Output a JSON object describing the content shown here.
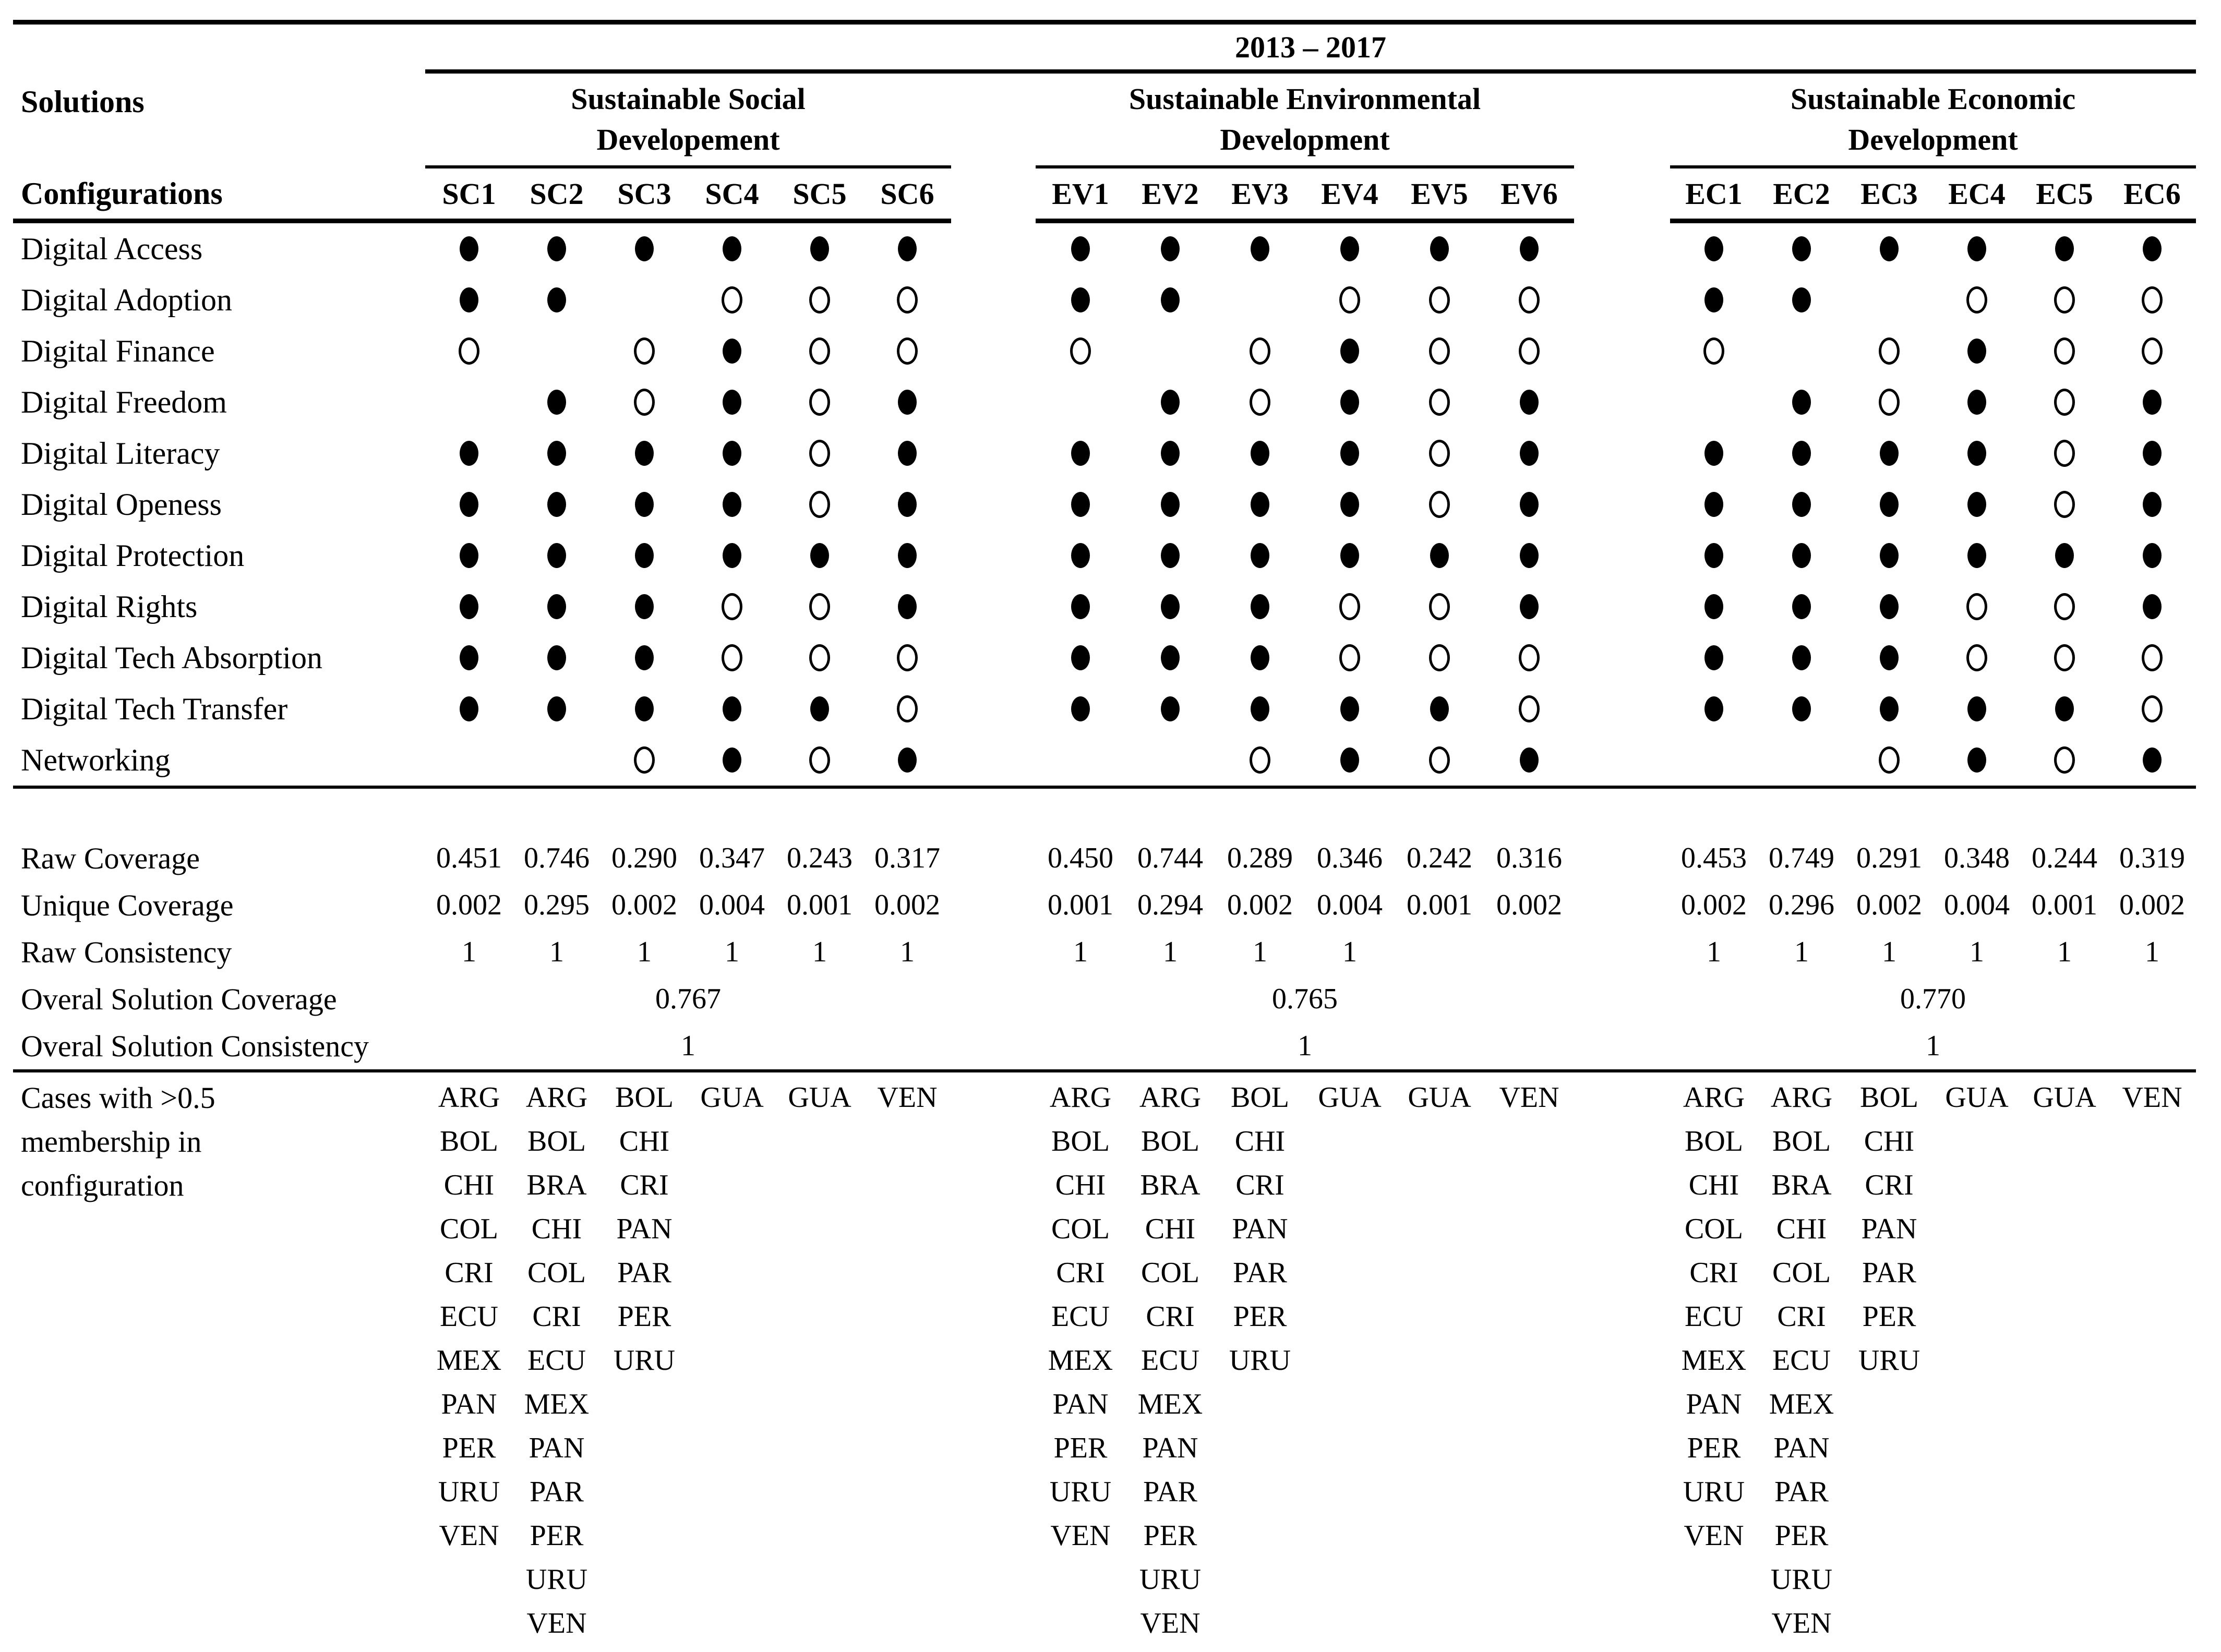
{
  "header": {
    "period": "2013 – 2017",
    "solutions_label": "Solutions",
    "configurations_label": "Configurations"
  },
  "groups": [
    {
      "title_line1": "Sustainable Social",
      "title_line2": "Developement",
      "columns": [
        "SC1",
        "SC2",
        "SC3",
        "SC4",
        "SC5",
        "SC6"
      ]
    },
    {
      "title_line1": "Sustainable Environmental",
      "title_line2": "Development",
      "columns": [
        "EV1",
        "EV2",
        "EV3",
        "EV4",
        "EV5",
        "EV6"
      ]
    },
    {
      "title_line1": "Sustainable Economic",
      "title_line2": "Development",
      "columns": [
        "EC1",
        "EC2",
        "EC3",
        "EC4",
        "EC5",
        "EC6"
      ]
    }
  ],
  "symbols": {
    "present": "●",
    "absent": "○",
    "blank": ""
  },
  "conditions": [
    {
      "label": "Digital Access",
      "sc": [
        "●",
        "●",
        "●",
        "●",
        "●",
        "●"
      ],
      "ev": [
        "●",
        "●",
        "●",
        "●",
        "●",
        "●"
      ],
      "ec": [
        "●",
        "●",
        "●",
        "●",
        "●",
        "●"
      ]
    },
    {
      "label": "Digital Adoption",
      "sc": [
        "●",
        "●",
        "",
        "○",
        "○",
        "○"
      ],
      "ev": [
        "●",
        "●",
        "",
        "○",
        "○",
        "○"
      ],
      "ec": [
        "●",
        "●",
        "",
        "○",
        "○",
        "○"
      ]
    },
    {
      "label": "Digital Finance",
      "sc": [
        "○",
        "",
        "○",
        "●",
        "○",
        "○"
      ],
      "ev": [
        "○",
        "",
        "○",
        "●",
        "○",
        "○"
      ],
      "ec": [
        "○",
        "",
        "○",
        "●",
        "○",
        "○"
      ]
    },
    {
      "label": "Digital Freedom",
      "sc": [
        "",
        "●",
        "○",
        "●",
        "○",
        "●"
      ],
      "ev": [
        "",
        "●",
        "○",
        "●",
        "○",
        "●"
      ],
      "ec": [
        "",
        "●",
        "○",
        "●",
        "○",
        "●"
      ]
    },
    {
      "label": "Digital Literacy",
      "sc": [
        "●",
        "●",
        "●",
        "●",
        "○",
        "●"
      ],
      "ev": [
        "●",
        "●",
        "●",
        "●",
        "○",
        "●"
      ],
      "ec": [
        "●",
        "●",
        "●",
        "●",
        "○",
        "●"
      ]
    },
    {
      "label": "Digital Openess",
      "sc": [
        "●",
        "●",
        "●",
        "●",
        "○",
        "●"
      ],
      "ev": [
        "●",
        "●",
        "●",
        "●",
        "○",
        "●"
      ],
      "ec": [
        "●",
        "●",
        "●",
        "●",
        "○",
        "●"
      ]
    },
    {
      "label": "Digital Protection",
      "sc": [
        "●",
        "●",
        "●",
        "●",
        "●",
        "●"
      ],
      "ev": [
        "●",
        "●",
        "●",
        "●",
        "●",
        "●"
      ],
      "ec": [
        "●",
        "●",
        "●",
        "●",
        "●",
        "●"
      ]
    },
    {
      "label": "Digital Rights",
      "sc": [
        "●",
        "●",
        "●",
        "○",
        "○",
        "●"
      ],
      "ev": [
        "●",
        "●",
        "●",
        "○",
        "○",
        "●"
      ],
      "ec": [
        "●",
        "●",
        "●",
        "○",
        "○",
        "●"
      ]
    },
    {
      "label": "Digital Tech Absorption",
      "sc": [
        "●",
        "●",
        "●",
        "○",
        "○",
        "○"
      ],
      "ev": [
        "●",
        "●",
        "●",
        "○",
        "○",
        "○"
      ],
      "ec": [
        "●",
        "●",
        "●",
        "○",
        "○",
        "○"
      ]
    },
    {
      "label": "Digital Tech Transfer",
      "sc": [
        "●",
        "●",
        "●",
        "●",
        "●",
        "○"
      ],
      "ev": [
        "●",
        "●",
        "●",
        "●",
        "●",
        "○"
      ],
      "ec": [
        "●",
        "●",
        "●",
        "●",
        "●",
        "○"
      ]
    },
    {
      "label": "Networking",
      "sc": [
        "",
        "",
        "○",
        "●",
        "○",
        "●"
      ],
      "ev": [
        "",
        "",
        "○",
        "●",
        "○",
        "●"
      ],
      "ec": [
        "",
        "",
        "○",
        "●",
        "○",
        "●"
      ]
    }
  ],
  "stats": {
    "raw_coverage": {
      "label": "Raw Coverage",
      "sc": [
        "0.451",
        "0.746",
        "0.290",
        "0.347",
        "0.243",
        "0.317"
      ],
      "ev": [
        "0.450",
        "0.744",
        "0.289",
        "0.346",
        "0.242",
        "0.316"
      ],
      "ec": [
        "0.453",
        "0.749",
        "0.291",
        "0.348",
        "0.244",
        "0.319"
      ]
    },
    "unique_coverage": {
      "label": "Unique Coverage",
      "sc": [
        "0.002",
        "0.295",
        "0.002",
        "0.004",
        "0.001",
        "0.002"
      ],
      "ev": [
        "0.001",
        "0.294",
        "0.002",
        "0.004",
        "0.001",
        "0.002"
      ],
      "ec": [
        "0.002",
        "0.296",
        "0.002",
        "0.004",
        "0.001",
        "0.002"
      ]
    },
    "raw_consistency": {
      "label": "Raw Consistency",
      "sc": [
        "1",
        "1",
        "1",
        "1",
        "1",
        "1"
      ],
      "ev": [
        "1",
        "1",
        "1",
        "1",
        "",
        ""
      ],
      "ec": [
        "1",
        "1",
        "1",
        "1",
        "1",
        "1"
      ]
    },
    "overall_coverage": {
      "label": "Overal Solution Coverage",
      "sc": "0.767",
      "ev": "0.765",
      "ec": "0.770"
    },
    "overall_consistency": {
      "label": "Overal Solution Consistency",
      "sc": "1",
      "ev": "1",
      "ec": "1"
    }
  },
  "cases": {
    "label_lines": [
      "Cases with >0.5",
      "membership in",
      "configuration"
    ],
    "sc": [
      [
        "ARG",
        "BOL",
        "CHI",
        "COL",
        "CRI",
        "ECU",
        "MEX",
        "PAN",
        "PER",
        "URU",
        "VEN"
      ],
      [
        "ARG",
        "BOL",
        "BRA",
        "CHI",
        "COL",
        "CRI",
        "ECU",
        "MEX",
        "PAN",
        "PAR",
        "PER",
        "URU",
        "VEN"
      ],
      [
        "BOL",
        "CHI",
        "CRI",
        "PAN",
        "PAR",
        "PER",
        "URU"
      ],
      [
        "GUA"
      ],
      [
        "GUA"
      ],
      [
        "VEN"
      ]
    ],
    "ev": [
      [
        "ARG",
        "BOL",
        "CHI",
        "COL",
        "CRI",
        "ECU",
        "MEX",
        "PAN",
        "PER",
        "URU",
        "VEN"
      ],
      [
        "ARG",
        "BOL",
        "BRA",
        "CHI",
        "COL",
        "CRI",
        "ECU",
        "MEX",
        "PAN",
        "PAR",
        "PER",
        "URU",
        "VEN"
      ],
      [
        "BOL",
        "CHI",
        "CRI",
        "PAN",
        "PAR",
        "PER",
        "URU"
      ],
      [
        "GUA"
      ],
      [
        "GUA"
      ],
      [
        "VEN"
      ]
    ],
    "ec": [
      [
        "ARG",
        "BOL",
        "CHI",
        "COL",
        "CRI",
        "ECU",
        "MEX",
        "PAN",
        "PER",
        "URU",
        "VEN"
      ],
      [
        "ARG",
        "BOL",
        "BRA",
        "CHI",
        "COL",
        "CRI",
        "ECU",
        "MEX",
        "PAN",
        "PAR",
        "PER",
        "URU",
        "VEN"
      ],
      [
        "BOL",
        "CHI",
        "CRI",
        "PAN",
        "PAR",
        "PER",
        "URU"
      ],
      [
        "GUA"
      ],
      [
        "GUA"
      ],
      [
        "VEN"
      ]
    ]
  }
}
